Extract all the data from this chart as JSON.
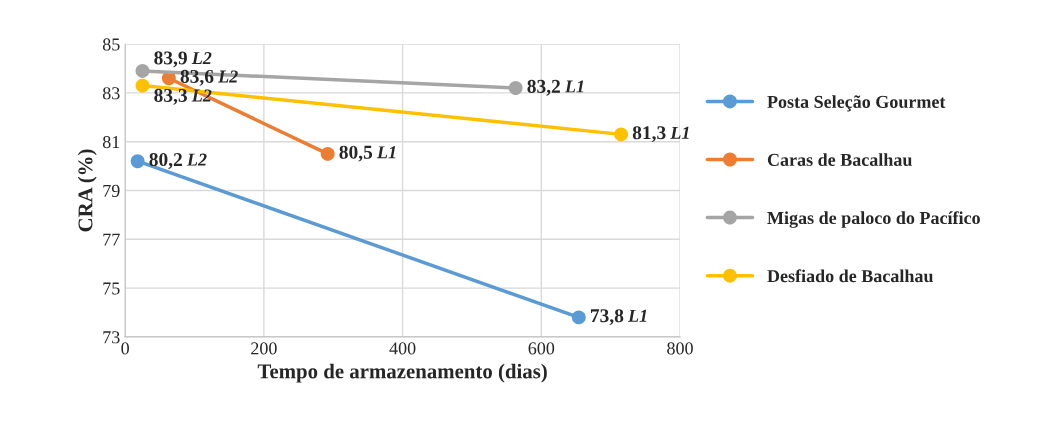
{
  "chart_data": {
    "type": "line",
    "xlabel": "Tempo de armazenamento (dias)",
    "ylabel": "CRA (%)",
    "xlim": [
      0,
      800
    ],
    "xticks": [
      0,
      200,
      400,
      600,
      800
    ],
    "ylim": [
      73,
      85
    ],
    "yticks": [
      73,
      75,
      77,
      79,
      81,
      83,
      85
    ],
    "grid": true,
    "legend": "right",
    "marker": "circle",
    "line_style": "solid",
    "series": [
      {
        "name": "Posta Seleção Gourmet",
        "color": "#5b9bd5",
        "x": [
          18,
          654
        ],
        "values": [
          80.2,
          73.8
        ],
        "value_labels": [
          "80,2",
          "73,8"
        ]
      },
      {
        "name": "Caras de Bacalhau",
        "color": "#ed7d31",
        "x": [
          63,
          292
        ],
        "values": [
          83.6,
          80.5
        ],
        "value_labels": [
          "83,6",
          "80,5"
        ]
      },
      {
        "name": "Migas de paloco do Pacífico",
        "color": "#a5a5a5",
        "x": [
          25,
          563
        ],
        "values": [
          83.9,
          83.2
        ],
        "value_labels": [
          "83,9",
          "83,2"
        ]
      },
      {
        "name": "Desfiado de Bacalhau",
        "color": "#ffc000",
        "x": [
          25,
          715
        ],
        "values": [
          83.3,
          81.3
        ],
        "value_labels": [
          "83,3",
          "81,3"
        ]
      }
    ],
    "annotations": [
      {
        "text": "L2",
        "x": 18,
        "y": 80.2
      },
      {
        "text": "L1",
        "x": 654,
        "y": 73.8
      },
      {
        "text": "L2",
        "x": 63,
        "y": 83.6
      },
      {
        "text": "L1",
        "x": 292,
        "y": 80.5
      },
      {
        "text": "L2",
        "x": 25,
        "y": 83.9
      },
      {
        "text": "L1",
        "x": 563,
        "y": 83.2
      },
      {
        "text": "L2",
        "x": 25,
        "y": 83.3
      },
      {
        "text": "L1",
        "x": 715,
        "y": 81.3
      }
    ]
  }
}
